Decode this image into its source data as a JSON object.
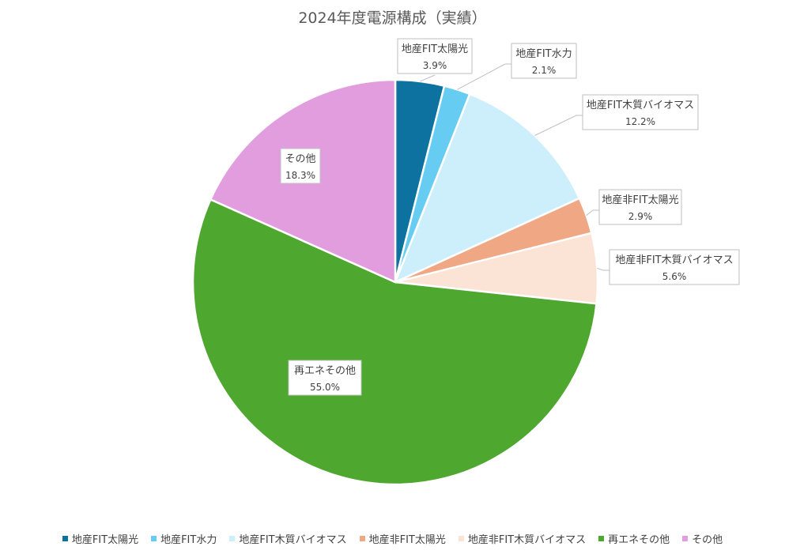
{
  "chart_data": {
    "type": "pie",
    "title": "2024年度電源構成（実績）",
    "unit": "%",
    "slices": [
      {
        "name": "地産FIT太陽光",
        "value": 3.9,
        "label": "3.9%",
        "color": "#0e72a0"
      },
      {
        "name": "地産FIT水力",
        "value": 2.1,
        "label": "2.1%",
        "color": "#66ccf2"
      },
      {
        "name": "地産FIT木質バイオマス",
        "value": 12.2,
        "label": "12.2%",
        "color": "#cdeefb"
      },
      {
        "name": "地産非FIT太陽光",
        "value": 2.9,
        "label": "2.9%",
        "color": "#f0a884"
      },
      {
        "name": "地産非FIT木質バイオマス",
        "value": 5.6,
        "label": "5.6%",
        "color": "#fbe3d6"
      },
      {
        "name": "再エネその他",
        "value": 55.0,
        "label": "55.0%",
        "color": "#4ea72e"
      },
      {
        "name": "その他",
        "value": 18.3,
        "label": "18.3%",
        "color": "#e29ddf"
      }
    ],
    "legend_position": "bottom",
    "start_angle": "top, clockwise"
  }
}
